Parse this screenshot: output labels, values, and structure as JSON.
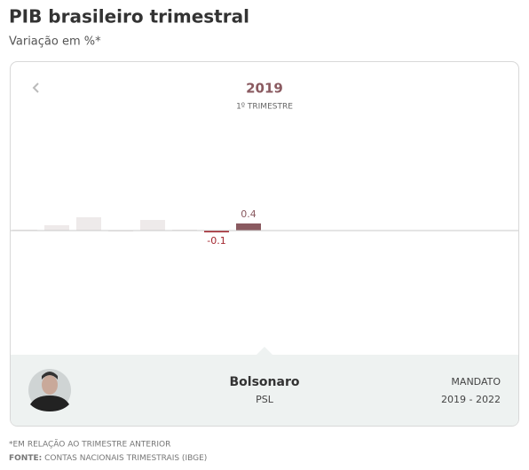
{
  "chart_data": {
    "type": "bar",
    "title": "PIB brasileiro trimestral",
    "subtitle": "Variação em %*",
    "period_year": "2019",
    "period_quarter": "1º TRIMESTRE",
    "categories": [
      null,
      null,
      null,
      null,
      null,
      null,
      null,
      null
    ],
    "values": [
      0.05,
      0.3,
      0.75,
      -0.05,
      0.6,
      0.05,
      -0.1,
      0.4
    ],
    "value_labels": [
      null,
      null,
      null,
      null,
      null,
      null,
      "-0.1",
      "0.4"
    ],
    "colors": [
      "#eeeaea",
      "#eeeaea",
      "#eeeaea",
      "#eeeaea",
      "#eeeaea",
      "#eeeaea",
      "#a3262f",
      "#8a5a60"
    ],
    "ylim": [
      -7,
      6.5
    ],
    "president": {
      "name": "Bolsonaro",
      "party": "PSL",
      "term_label": "MANDATO",
      "term": "2019 - 2022"
    },
    "footnote": "*EM RELAÇÃO AO TRIMESTRE ANTERIOR",
    "source_label": "FONTE:",
    "source": "CONTAS NACIONAIS TRIMESTRAIS (IBGE)"
  }
}
